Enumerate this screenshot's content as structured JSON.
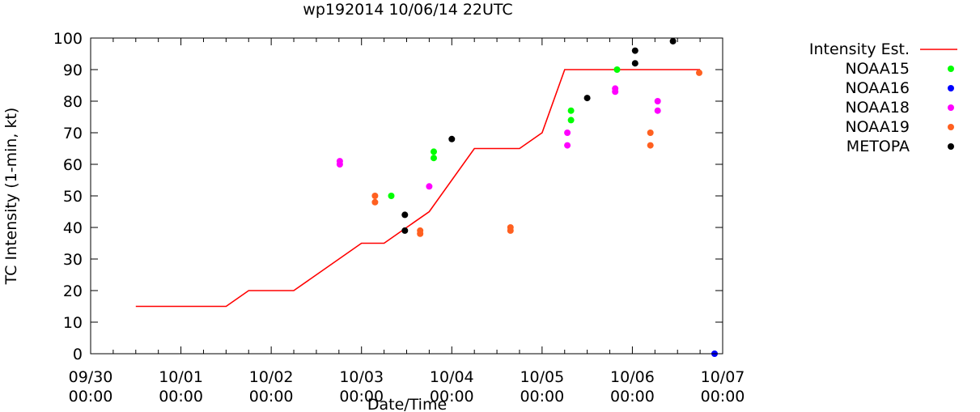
{
  "chart_data": {
    "type": "scatter",
    "title": "wp192014 10/06/14 22UTC",
    "xlabel": "Date/Time",
    "ylabel": "TC Intensity (1-min, kt)",
    "xlim": [
      0,
      7
    ],
    "ylim": [
      0,
      100
    ],
    "x_ticks": [
      {
        "x": 0,
        "date": "09/30",
        "time": "00:00"
      },
      {
        "x": 1,
        "date": "10/01",
        "time": "00:00"
      },
      {
        "x": 2,
        "date": "10/02",
        "time": "00:00"
      },
      {
        "x": 3,
        "date": "10/03",
        "time": "00:00"
      },
      {
        "x": 4,
        "date": "10/04",
        "time": "00:00"
      },
      {
        "x": 5,
        "date": "10/05",
        "time": "00:00"
      },
      {
        "x": 6,
        "date": "10/06",
        "time": "00:00"
      },
      {
        "x": 7,
        "date": "10/07",
        "time": "00:00"
      }
    ],
    "y_ticks": [
      0,
      10,
      20,
      30,
      40,
      50,
      60,
      70,
      80,
      90,
      100
    ],
    "legend_position": "outside-right",
    "series": [
      {
        "name": "Intensity Est.",
        "kind": "line",
        "color": "#ff0000",
        "points": [
          [
            0.5,
            15
          ],
          [
            1.5,
            15
          ],
          [
            1.75,
            20
          ],
          [
            2.25,
            20
          ],
          [
            3.0,
            35
          ],
          [
            3.25,
            35
          ],
          [
            3.75,
            45
          ],
          [
            4.25,
            65
          ],
          [
            4.75,
            65
          ],
          [
            5.0,
            70
          ],
          [
            5.25,
            90
          ],
          [
            6.75,
            90
          ]
        ]
      },
      {
        "name": "NOAA15",
        "kind": "point",
        "color": "#00ff00",
        "points": [
          [
            3.33,
            50
          ],
          [
            3.8,
            64
          ],
          [
            3.8,
            62
          ],
          [
            5.32,
            77
          ],
          [
            5.32,
            74
          ],
          [
            5.83,
            90
          ]
        ]
      },
      {
        "name": "NOAA16",
        "kind": "point",
        "color": "#0000ff",
        "points": [
          [
            6.91,
            0
          ]
        ]
      },
      {
        "name": "NOAA18",
        "kind": "point",
        "color": "#ff00ff",
        "points": [
          [
            2.76,
            61
          ],
          [
            2.76,
            60
          ],
          [
            3.75,
            53
          ],
          [
            5.28,
            70
          ],
          [
            5.28,
            66
          ],
          [
            5.81,
            84
          ],
          [
            5.81,
            83
          ],
          [
            6.28,
            80
          ],
          [
            6.28,
            77
          ]
        ]
      },
      {
        "name": "NOAA19",
        "kind": "point",
        "color": "#ff6020",
        "points": [
          [
            3.15,
            50
          ],
          [
            3.15,
            48
          ],
          [
            3.65,
            39
          ],
          [
            3.65,
            38
          ],
          [
            4.65,
            40
          ],
          [
            4.65,
            39
          ],
          [
            6.2,
            70
          ],
          [
            6.2,
            66
          ],
          [
            6.74,
            89
          ]
        ]
      },
      {
        "name": "METOPA",
        "kind": "point",
        "color": "#000000",
        "points": [
          [
            3.48,
            44
          ],
          [
            3.48,
            39
          ],
          [
            4.0,
            68
          ],
          [
            5.5,
            81
          ],
          [
            6.03,
            96
          ],
          [
            6.03,
            92
          ],
          [
            6.45,
            99
          ]
        ]
      }
    ]
  }
}
